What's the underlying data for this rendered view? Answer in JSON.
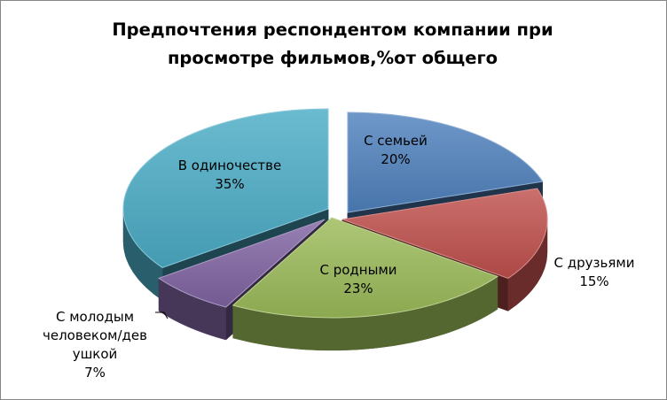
{
  "chart_data": {
    "type": "pie",
    "style": "3d-exploded",
    "title": "Предпочтения респондентом компании при просмотре фильмов,%от общего",
    "title_lines": [
      "Предпочтения респондентом компании при",
      "просмотре фильмов,%от общего"
    ],
    "categories": [
      "С семьей",
      "С друзьями",
      "С родными",
      "С молодым человеком/девушкой",
      "В одиночестве"
    ],
    "values": [
      20,
      15,
      23,
      7,
      35
    ],
    "slices": [
      {
        "name": "С семьей",
        "label_lines": [
          "С семьей"
        ],
        "percent_label": "20%",
        "value": 20,
        "color": "#4F81BD",
        "label_position": "inside"
      },
      {
        "name": "С друзьями",
        "label_lines": [
          "С друзьями"
        ],
        "percent_label": "15%",
        "value": 15,
        "color": "#C0504D",
        "label_position": "outside"
      },
      {
        "name": "С родными",
        "label_lines": [
          "С родными"
        ],
        "percent_label": "23%",
        "value": 23,
        "color": "#9BBB59",
        "label_position": "inside"
      },
      {
        "name": "С молодым человеком/девушкой",
        "label_lines": [
          "С молодым",
          "человеком/дев",
          "ушкой"
        ],
        "percent_label": "7%",
        "value": 7,
        "color": "#8064A2",
        "label_position": "outside-leader"
      },
      {
        "name": "В одиночестве",
        "label_lines": [
          "В одиночестве"
        ],
        "percent_label": "35%",
        "value": 35,
        "color": "#4BACC6",
        "label_position": "inside"
      }
    ],
    "legend": "none",
    "units": "%"
  }
}
